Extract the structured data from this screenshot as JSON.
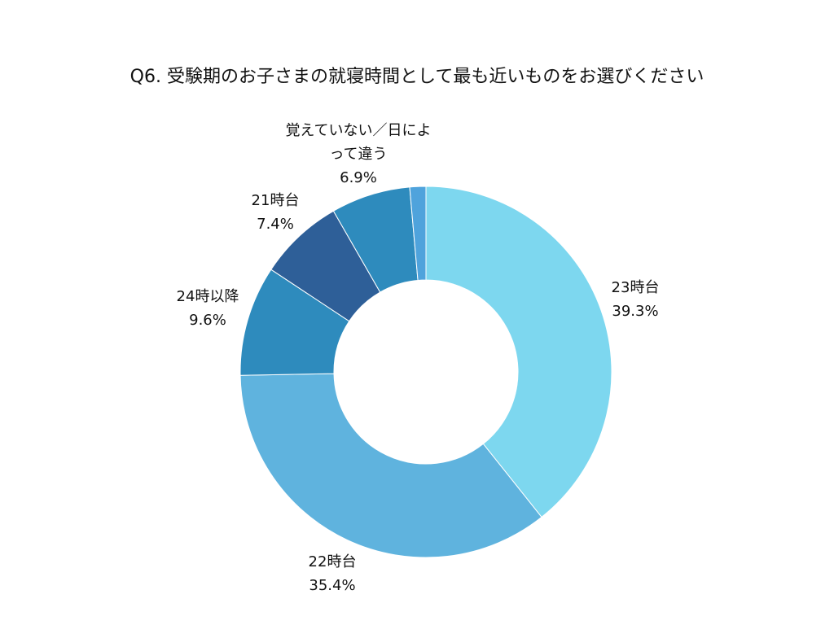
{
  "chart_data": {
    "type": "pie",
    "donut": true,
    "title": "Q6. 受験期のお子さまの就寝時間として最も近いものをお選びください",
    "slices": [
      {
        "label": "23時台",
        "value": 39.3,
        "value_label": "39.3%",
        "color": "#7dd7ef"
      },
      {
        "label": "22時台",
        "value": 35.4,
        "value_label": "35.4%",
        "color": "#5fb3de"
      },
      {
        "label": "24時以降",
        "value": 9.6,
        "value_label": "9.6%",
        "color": "#2e8bbd"
      },
      {
        "label": "21時台",
        "value": 7.4,
        "value_label": "7.4%",
        "color": "#2e5f98"
      },
      {
        "label": "覚えていない／日によって違う",
        "value": 6.9,
        "value_label": "6.9%",
        "color": "#2e8bbd"
      },
      {
        "label": "",
        "value": 1.4,
        "value_label": "",
        "color": "#4fa3dc"
      }
    ],
    "legend": "none"
  }
}
